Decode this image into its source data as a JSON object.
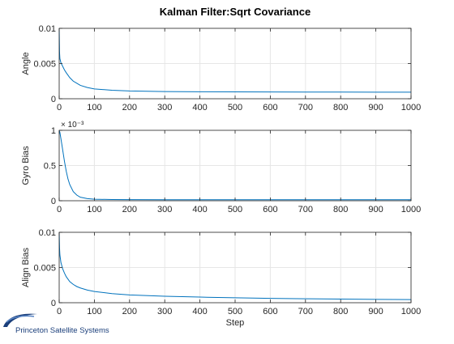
{
  "figure": {
    "title": "Kalman Filter:Sqrt Covariance",
    "line_color": "#0072BD"
  },
  "logo": {
    "text": "Princeton Satellite Systems",
    "color": "#1a3e7a"
  },
  "chart_data": [
    {
      "type": "line",
      "ylabel": "Angle",
      "xlabel": "",
      "xlim": [
        0,
        1000
      ],
      "ylim": [
        0,
        0.01
      ],
      "grid": true,
      "xticks": [
        0,
        100,
        200,
        300,
        400,
        500,
        600,
        700,
        800,
        900,
        1000
      ],
      "yticks": [
        0,
        0.005,
        0.01
      ],
      "ytick_labels": [
        "0",
        "0.005",
        "0.01"
      ],
      "exponent_label": "",
      "x": [
        0,
        1,
        2,
        5,
        10,
        15,
        20,
        30,
        40,
        50,
        60,
        80,
        100,
        150,
        200,
        300,
        400,
        500,
        600,
        700,
        800,
        900,
        1000
      ],
      "y": [
        0.01,
        0.0066,
        0.0057,
        0.0051,
        0.0046,
        0.0041,
        0.0037,
        0.003,
        0.0025,
        0.0022,
        0.0019,
        0.0016,
        0.0014,
        0.0012,
        0.0011,
        0.00102,
        0.00099,
        0.00097,
        0.00096,
        0.00095,
        0.00095,
        0.00094,
        0.00094
      ]
    },
    {
      "type": "line",
      "ylabel": "Gyro Bias",
      "xlabel": "",
      "xlim": [
        0,
        1000
      ],
      "ylim": [
        0,
        0.001
      ],
      "grid": true,
      "xticks": [
        0,
        100,
        200,
        300,
        400,
        500,
        600,
        700,
        800,
        900,
        1000
      ],
      "yticks": [
        0,
        0.0005,
        0.001
      ],
      "ytick_labels": [
        "0",
        "0.5",
        "1"
      ],
      "exponent_label": "× 10⁻³",
      "x": [
        0,
        2,
        5,
        10,
        15,
        20,
        25,
        30,
        40,
        50,
        60,
        80,
        100,
        150,
        200,
        300,
        500,
        700,
        1000
      ],
      "y": [
        0.001,
        0.00097,
        0.00088,
        0.00072,
        0.00056,
        0.00042,
        0.00031,
        0.00023,
        0.00013,
        8e-05,
        5e-05,
        3e-05,
        2.2e-05,
        1.7e-05,
        1.6e-05,
        1.5e-05,
        1.5e-05,
        1.5e-05,
        1.5e-05
      ]
    },
    {
      "type": "line",
      "ylabel": "Align Bias",
      "xlabel": "Step",
      "xlim": [
        0,
        1000
      ],
      "ylim": [
        0,
        0.01
      ],
      "grid": true,
      "xticks": [
        0,
        100,
        200,
        300,
        400,
        500,
        600,
        700,
        800,
        900,
        1000
      ],
      "yticks": [
        0,
        0.005,
        0.01
      ],
      "ytick_labels": [
        "0",
        "0.005",
        "0.01"
      ],
      "exponent_label": "",
      "x": [
        0,
        1,
        2,
        5,
        10,
        15,
        20,
        30,
        40,
        50,
        60,
        80,
        100,
        150,
        200,
        300,
        400,
        500,
        600,
        700,
        800,
        900,
        1000
      ],
      "y": [
        0.01,
        0.0078,
        0.0068,
        0.0057,
        0.0048,
        0.0042,
        0.0037,
        0.003,
        0.0026,
        0.0023,
        0.0021,
        0.0018,
        0.0016,
        0.0013,
        0.0011,
        0.00092,
        0.0008,
        0.0007,
        0.00062,
        0.00056,
        0.00051,
        0.00047,
        0.00044
      ]
    }
  ]
}
